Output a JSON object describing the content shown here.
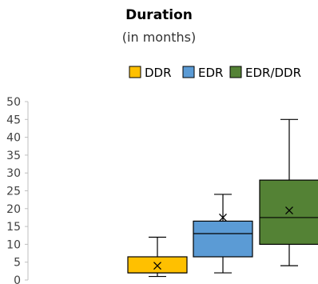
{
  "chart_data": {
    "type": "boxplot",
    "title": "Duration",
    "subtitle": "(in months)",
    "xlabel": "",
    "ylabel": "",
    "ylim": [
      0,
      50
    ],
    "yticks": [
      0,
      5,
      10,
      15,
      20,
      25,
      30,
      35,
      40,
      45,
      50
    ],
    "grid": false,
    "legend_position": "top-center",
    "series": [
      {
        "name": "DDR",
        "color": "#FFC000",
        "min": 1,
        "q1": 2,
        "median": 2,
        "q3": 6.5,
        "max": 12,
        "mean": 4
      },
      {
        "name": "EDR",
        "color": "#5B9BD5",
        "min": 2,
        "q1": 6.5,
        "median": 13,
        "q3": 16.5,
        "max": 24,
        "mean": 17.5
      },
      {
        "name": "EDR/DDR",
        "color": "#548235",
        "min": 4,
        "q1": 10,
        "median": 17.5,
        "q3": 28,
        "max": 45,
        "mean": 19.5
      }
    ]
  }
}
